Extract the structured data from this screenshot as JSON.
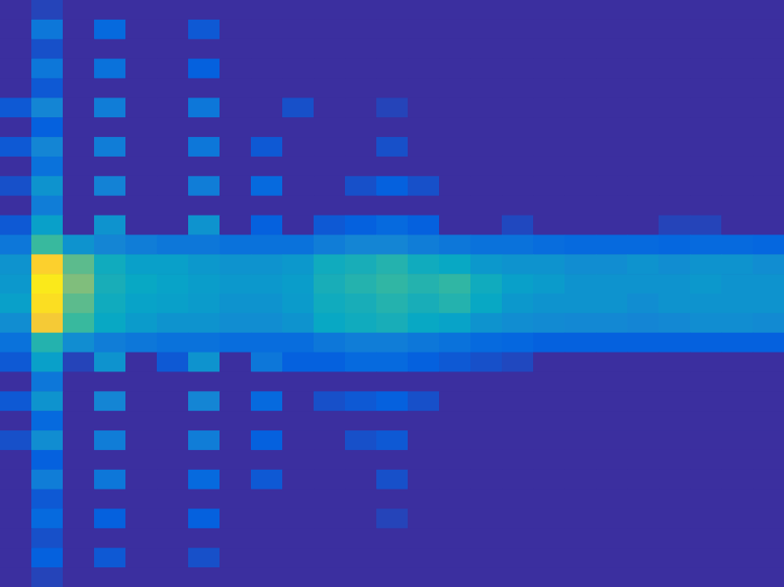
{
  "chart_data": {
    "type": "heatmap",
    "tick_labels": false,
    "xlim": [
      0,
      25
    ],
    "ylim": [
      0,
      30
    ],
    "zlim": [
      0,
      1
    ],
    "cells": [
      [
        0,
        0.05,
        0,
        0,
        0,
        0,
        0,
        0,
        0,
        0,
        0,
        0,
        0,
        0,
        0,
        0,
        0,
        0,
        0,
        0,
        0,
        0,
        0,
        0,
        0
      ],
      [
        0,
        0.2,
        0,
        0.15,
        0,
        0,
        0.1,
        0,
        0,
        0,
        0,
        0,
        0,
        0,
        0,
        0,
        0,
        0,
        0,
        0,
        0,
        0,
        0,
        0,
        0
      ],
      [
        0,
        0.08,
        0,
        0,
        0,
        0,
        0,
        0,
        0,
        0,
        0,
        0,
        0,
        0,
        0,
        0,
        0,
        0,
        0,
        0,
        0,
        0,
        0,
        0,
        0
      ],
      [
        0,
        0.2,
        0,
        0.18,
        0,
        0,
        0.12,
        0,
        0,
        0,
        0,
        0,
        0,
        0,
        0,
        0,
        0,
        0,
        0,
        0,
        0,
        0,
        0,
        0,
        0
      ],
      [
        0,
        0.1,
        0,
        0,
        0,
        0,
        0,
        0,
        0,
        0,
        0,
        0,
        0,
        0,
        0,
        0,
        0,
        0,
        0,
        0,
        0,
        0,
        0,
        0,
        0
      ],
      [
        0.1,
        0.25,
        0,
        0.22,
        0,
        0,
        0.2,
        0,
        0,
        0.08,
        0,
        0,
        0.05,
        0,
        0,
        0,
        0,
        0,
        0,
        0,
        0,
        0,
        0,
        0,
        0
      ],
      [
        0,
        0.12,
        0,
        0,
        0,
        0,
        0,
        0,
        0,
        0,
        0,
        0,
        0,
        0,
        0,
        0,
        0,
        0,
        0,
        0,
        0,
        0,
        0,
        0,
        0
      ],
      [
        0.1,
        0.25,
        0,
        0.22,
        0,
        0,
        0.2,
        0,
        0.1,
        0,
        0,
        0,
        0.08,
        0,
        0,
        0,
        0,
        0,
        0,
        0,
        0,
        0,
        0,
        0,
        0
      ],
      [
        0,
        0.18,
        0,
        0,
        0,
        0,
        0,
        0,
        0,
        0,
        0,
        0,
        0,
        0,
        0,
        0,
        0,
        0,
        0,
        0,
        0,
        0,
        0,
        0,
        0
      ],
      [
        0.08,
        0.3,
        0,
        0.24,
        0,
        0,
        0.22,
        0,
        0.15,
        0,
        0,
        0.08,
        0.12,
        0.08,
        0,
        0,
        0,
        0,
        0,
        0,
        0,
        0,
        0,
        0,
        0
      ],
      [
        0,
        0.22,
        0,
        0,
        0,
        0,
        0,
        0,
        0,
        0,
        0,
        0,
        0,
        0,
        0,
        0,
        0,
        0,
        0,
        0,
        0,
        0,
        0,
        0,
        0
      ],
      [
        0.1,
        0.35,
        0,
        0.3,
        0,
        0,
        0.3,
        0,
        0.12,
        0,
        0.1,
        0.12,
        0.15,
        0.12,
        0,
        0,
        0.06,
        0,
        0,
        0,
        0,
        0.05,
        0.05,
        0,
        0
      ],
      [
        0.2,
        0.5,
        0.3,
        0.25,
        0.22,
        0.2,
        0.2,
        0.18,
        0.18,
        0.18,
        0.22,
        0.25,
        0.25,
        0.22,
        0.2,
        0.18,
        0.18,
        0.16,
        0.15,
        0.15,
        0.15,
        0.14,
        0.15,
        0.15,
        0.14
      ],
      [
        0.3,
        0.88,
        0.55,
        0.4,
        0.35,
        0.35,
        0.32,
        0.3,
        0.3,
        0.32,
        0.4,
        0.42,
        0.45,
        0.4,
        0.38,
        0.32,
        0.3,
        0.3,
        0.28,
        0.28,
        0.3,
        0.28,
        0.3,
        0.3,
        0.28
      ],
      [
        0.32,
        0.95,
        0.6,
        0.42,
        0.38,
        0.36,
        0.34,
        0.32,
        0.32,
        0.34,
        0.42,
        0.45,
        0.48,
        0.45,
        0.48,
        0.4,
        0.35,
        0.33,
        0.3,
        0.3,
        0.3,
        0.3,
        0.32,
        0.3,
        0.3
      ],
      [
        0.35,
        0.92,
        0.55,
        0.4,
        0.36,
        0.35,
        0.33,
        0.3,
        0.3,
        0.33,
        0.4,
        0.42,
        0.45,
        0.42,
        0.45,
        0.38,
        0.32,
        0.3,
        0.3,
        0.3,
        0.28,
        0.3,
        0.3,
        0.3,
        0.3
      ],
      [
        0.28,
        0.85,
        0.5,
        0.38,
        0.33,
        0.3,
        0.3,
        0.28,
        0.28,
        0.3,
        0.38,
        0.4,
        0.42,
        0.38,
        0.36,
        0.3,
        0.28,
        0.27,
        0.26,
        0.26,
        0.25,
        0.26,
        0.28,
        0.28,
        0.27
      ],
      [
        0.18,
        0.45,
        0.28,
        0.22,
        0.2,
        0.18,
        0.18,
        0.16,
        0.16,
        0.16,
        0.2,
        0.22,
        0.22,
        0.2,
        0.18,
        0.15,
        0.14,
        0.12,
        0.12,
        0.12,
        0.12,
        0.12,
        0.12,
        0.12,
        0.12
      ],
      [
        0.1,
        0.35,
        0.05,
        0.3,
        0,
        0.1,
        0.3,
        0,
        0.2,
        0.12,
        0.12,
        0.15,
        0.15,
        0.12,
        0.1,
        0.08,
        0.06,
        0,
        0,
        0,
        0,
        0,
        0,
        0,
        0
      ],
      [
        0,
        0.2,
        0,
        0,
        0,
        0,
        0,
        0,
        0,
        0,
        0,
        0,
        0,
        0,
        0,
        0,
        0,
        0,
        0,
        0,
        0,
        0,
        0,
        0,
        0
      ],
      [
        0.1,
        0.3,
        0,
        0.25,
        0,
        0,
        0.25,
        0,
        0.15,
        0,
        0.08,
        0.1,
        0.12,
        0.08,
        0,
        0,
        0,
        0,
        0,
        0,
        0,
        0,
        0,
        0,
        0
      ],
      [
        0,
        0.15,
        0,
        0,
        0,
        0,
        0,
        0,
        0,
        0,
        0,
        0,
        0,
        0,
        0,
        0,
        0,
        0,
        0,
        0,
        0,
        0,
        0,
        0,
        0
      ],
      [
        0.08,
        0.28,
        0,
        0.22,
        0,
        0,
        0.22,
        0,
        0.12,
        0,
        0,
        0.08,
        0.1,
        0,
        0,
        0,
        0,
        0,
        0,
        0,
        0,
        0,
        0,
        0,
        0
      ],
      [
        0,
        0.12,
        0,
        0,
        0,
        0,
        0,
        0,
        0,
        0,
        0,
        0,
        0,
        0,
        0,
        0,
        0,
        0,
        0,
        0,
        0,
        0,
        0,
        0,
        0
      ],
      [
        0,
        0.22,
        0,
        0.2,
        0,
        0,
        0.15,
        0,
        0.1,
        0,
        0,
        0,
        0.08,
        0,
        0,
        0,
        0,
        0,
        0,
        0,
        0,
        0,
        0,
        0,
        0
      ],
      [
        0,
        0.1,
        0,
        0,
        0,
        0,
        0,
        0,
        0,
        0,
        0,
        0,
        0,
        0,
        0,
        0,
        0,
        0,
        0,
        0,
        0,
        0,
        0,
        0,
        0
      ],
      [
        0,
        0.15,
        0,
        0.12,
        0,
        0,
        0.12,
        0,
        0,
        0,
        0,
        0,
        0.05,
        0,
        0,
        0,
        0,
        0,
        0,
        0,
        0,
        0,
        0,
        0,
        0
      ],
      [
        0,
        0.08,
        0,
        0,
        0,
        0,
        0,
        0,
        0,
        0,
        0,
        0,
        0,
        0,
        0,
        0,
        0,
        0,
        0,
        0,
        0,
        0,
        0,
        0,
        0
      ],
      [
        0,
        0.12,
        0,
        0.1,
        0,
        0,
        0.08,
        0,
        0,
        0,
        0,
        0,
        0,
        0,
        0,
        0,
        0,
        0,
        0,
        0,
        0,
        0,
        0,
        0,
        0
      ],
      [
        0,
        0.05,
        0,
        0,
        0,
        0,
        0,
        0,
        0,
        0,
        0,
        0,
        0,
        0,
        0,
        0,
        0,
        0,
        0,
        0,
        0,
        0,
        0,
        0,
        0
      ]
    ]
  }
}
